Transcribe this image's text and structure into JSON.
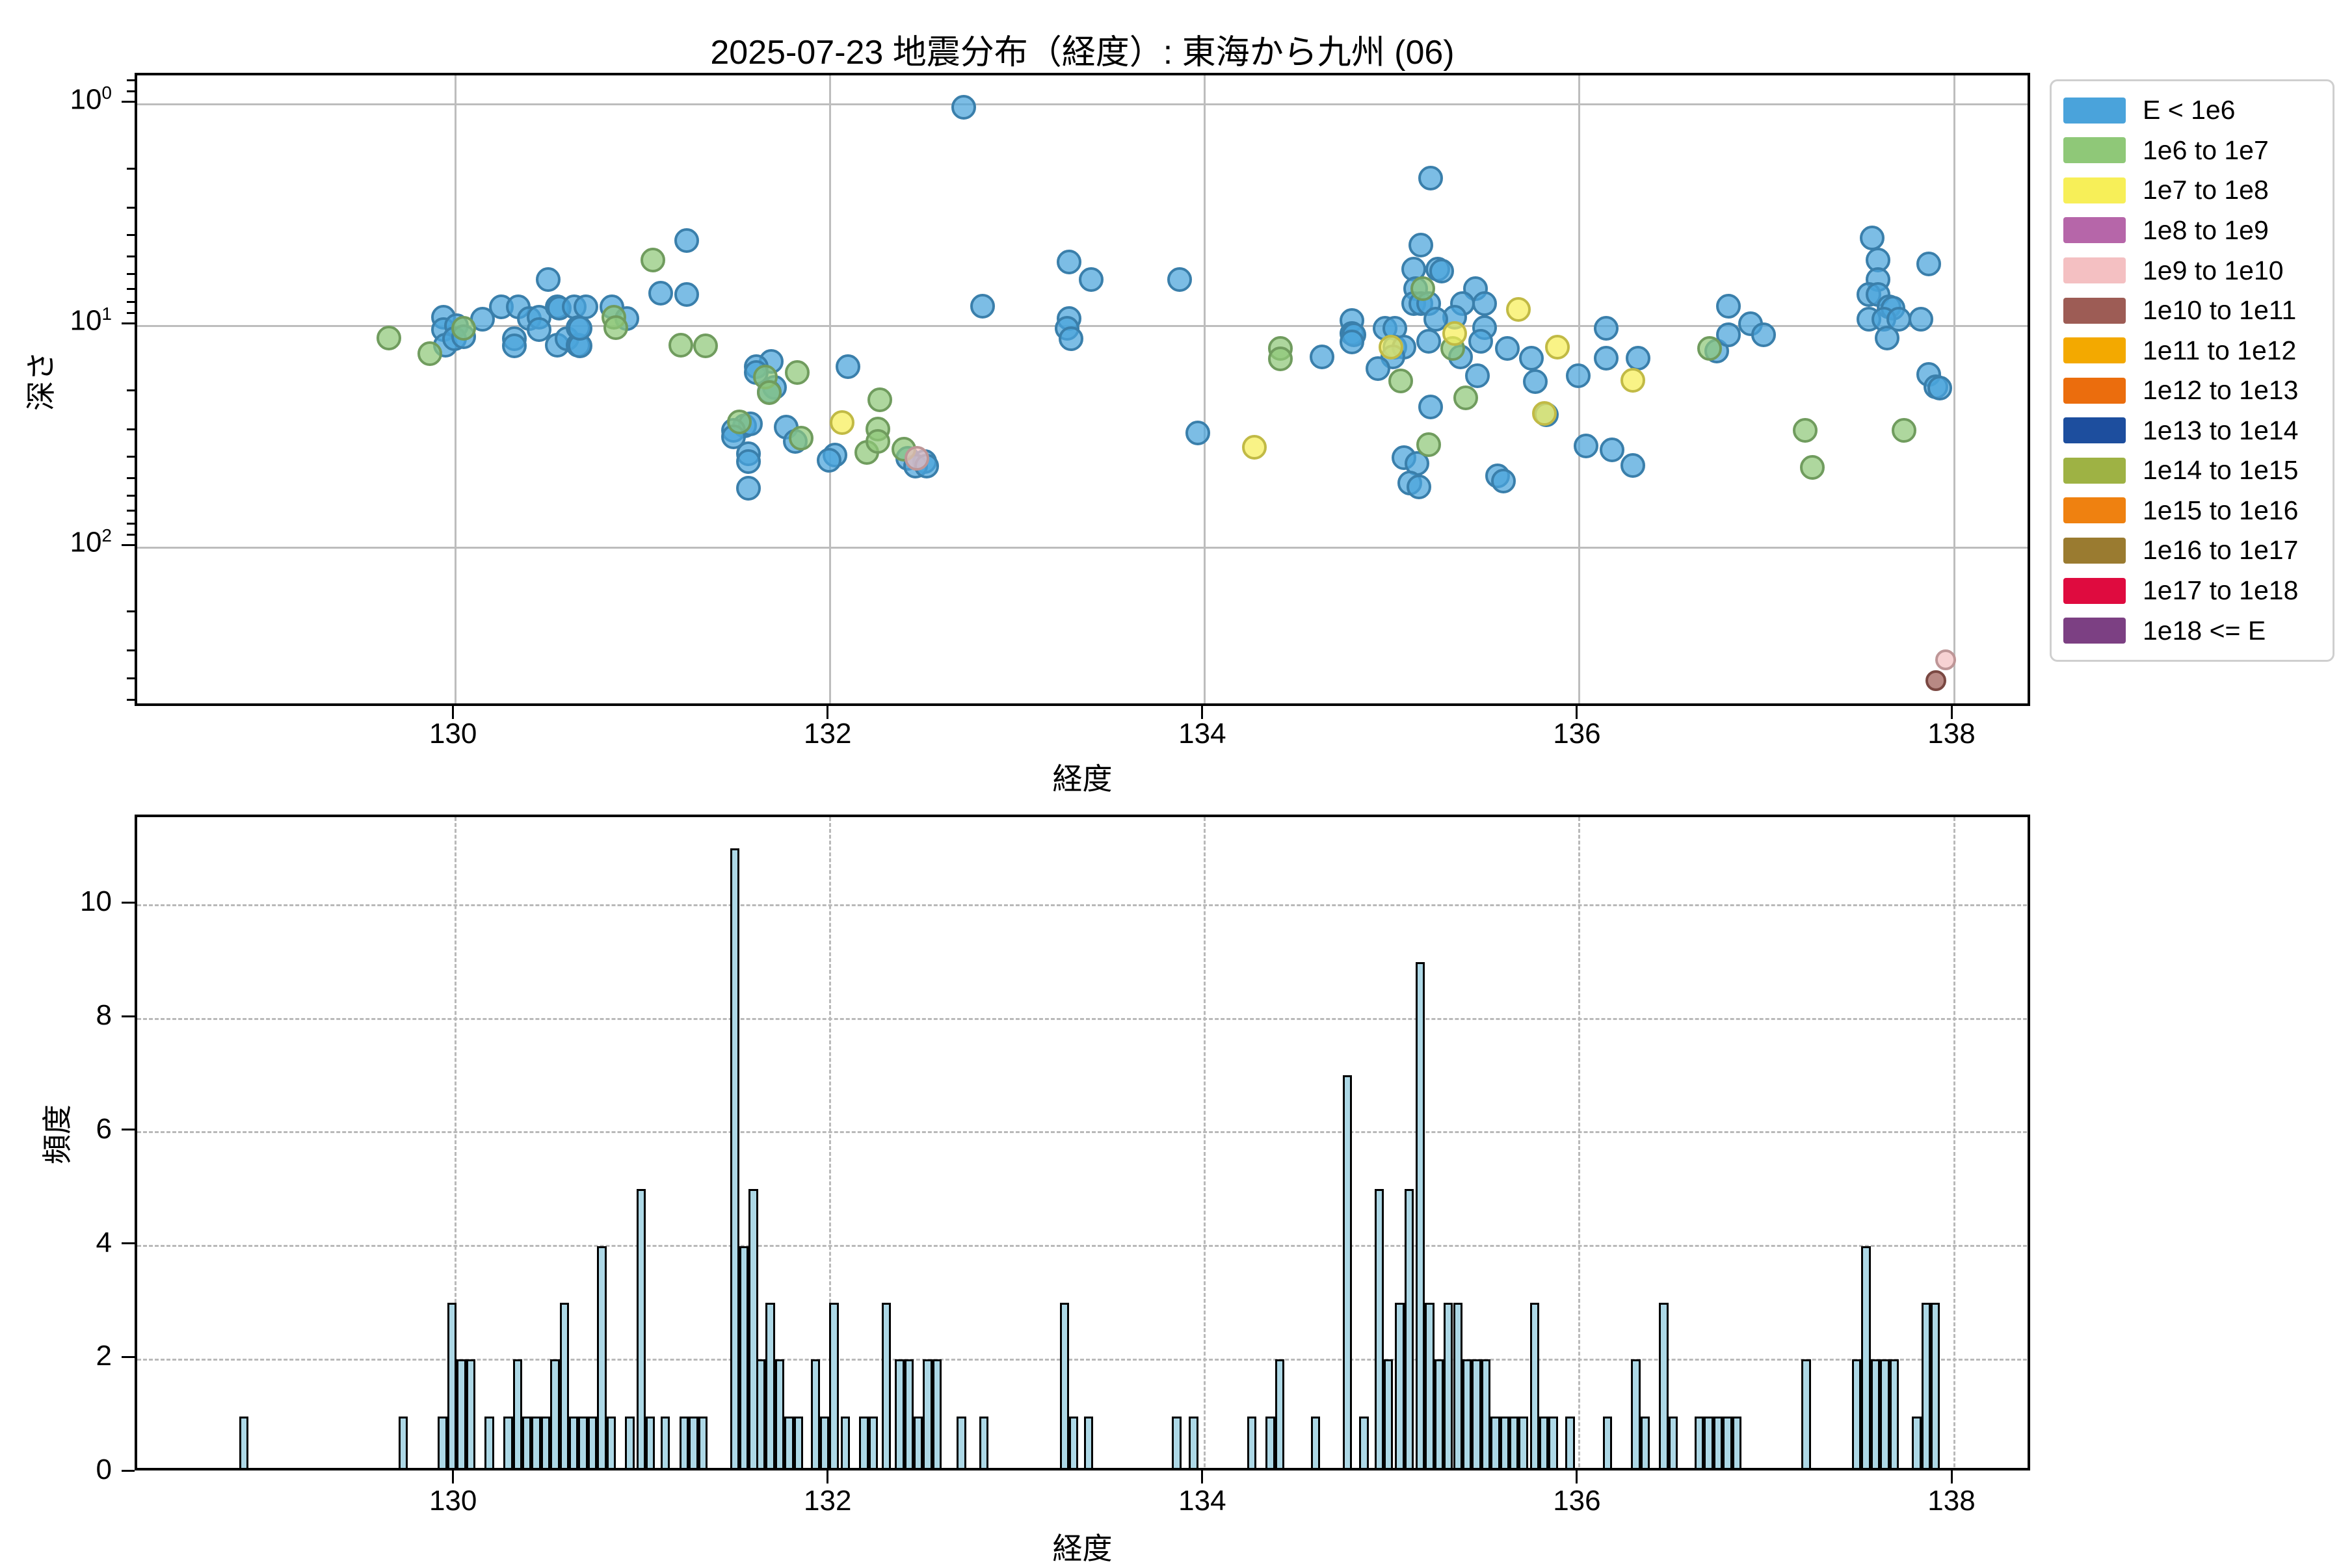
{
  "title": "2025-07-23 地震分布（経度）: 東海から九州 (06)",
  "scatter": {
    "xlabel": "経度",
    "ylabel": "深さ",
    "x_ticks": [
      130,
      132,
      134,
      136,
      138
    ],
    "y_ticks": [
      {
        "value": 1,
        "label": "10⁰"
      },
      {
        "value": 10,
        "label": "10¹"
      },
      {
        "value": 100,
        "label": "10²"
      }
    ]
  },
  "histogram": {
    "xlabel": "経度",
    "ylabel": "頻度",
    "x_ticks": [
      130,
      132,
      134,
      136,
      138
    ],
    "y_ticks": [
      0,
      2,
      4,
      6,
      8,
      10
    ],
    "bar_fill": "#add8e6",
    "bar_edge": "#000000"
  },
  "legend": [
    {
      "label": "E < 1e6",
      "color": "#4aa3db"
    },
    {
      "label": "1e6 to 1e7",
      "color": "#8fc878"
    },
    {
      "label": "1e7 to 1e8",
      "color": "#f7ef58"
    },
    {
      "label": "1e8 to 1e9",
      "color": "#b666a9"
    },
    {
      "label": "1e9 to 1e10",
      "color": "#f4c0c2"
    },
    {
      "label": "1e10 to 1e11",
      "color": "#9d5c55"
    },
    {
      "label": "1e11 to 1e12",
      "color": "#f3a900"
    },
    {
      "label": "1e12 to 1e13",
      "color": "#eb6d0d"
    },
    {
      "label": "1e13 to 1e14",
      "color": "#1d4e9e"
    },
    {
      "label": "1e14 to 1e15",
      "color": "#9eb244"
    },
    {
      "label": "1e15 to 1e16",
      "color": "#ef8110"
    },
    {
      "label": "1e16 to 1e17",
      "color": "#9a7b30"
    },
    {
      "label": "1e17 to 1e18",
      "color": "#df0b3f"
    },
    {
      "label": "1e18 <= E",
      "color": "#7c4083"
    }
  ],
  "chart_data": [
    {
      "type": "scatter",
      "title": "2025-07-23 地震分布（経度）: 東海から九州 (06)",
      "xlabel": "経度",
      "ylabel": "深さ",
      "xlim": [
        128.3,
        138.42
      ],
      "ylim": [
        0.74,
        533
      ],
      "yscale": "log",
      "y_inverted": true,
      "grid": "solid",
      "legend_position": "outside-right",
      "series": [
        {
          "name": "E < 1e6",
          "color": "#4aa3db",
          "points": [
            [
              129.92,
              8.9
            ],
            [
              129.92,
              10.1
            ],
            [
              129.93,
              11.9
            ],
            [
              129.99,
              9.7
            ],
            [
              129.98,
              11.1
            ],
            [
              130.03,
              10.9
            ],
            [
              130.13,
              9.1
            ],
            [
              130.23,
              8.0
            ],
            [
              130.32,
              8.0
            ],
            [
              130.38,
              9.0
            ],
            [
              130.43,
              8.9
            ],
            [
              130.43,
              10.1
            ],
            [
              130.48,
              6.0
            ],
            [
              130.53,
              8.0
            ],
            [
              130.54,
              8.1
            ],
            [
              130.62,
              8.0
            ],
            [
              130.68,
              8.0
            ],
            [
              130.3,
              11.1
            ],
            [
              130.3,
              12.0
            ],
            [
              130.53,
              11.9
            ],
            [
              130.58,
              11.1
            ],
            [
              130.64,
              11.9
            ],
            [
              130.65,
              12.0
            ],
            [
              130.64,
              9.9
            ],
            [
              130.65,
              10.0
            ],
            [
              130.82,
              8.0
            ],
            [
              130.9,
              9.0
            ],
            [
              131.08,
              6.9
            ],
            [
              131.22,
              4.0
            ],
            [
              131.22,
              7.0
            ],
            [
              131.67,
              14.1
            ],
            [
              131.59,
              14.9
            ],
            [
              131.59,
              15.8
            ],
            [
              131.69,
              18.4
            ],
            [
              131.66,
              19.3
            ],
            [
              132.08,
              14.9
            ],
            [
              131.53,
              27.5
            ],
            [
              131.56,
              27.0
            ],
            [
              131.47,
              28.8
            ],
            [
              131.47,
              30.8
            ],
            [
              131.75,
              27.9
            ],
            [
              131.8,
              32.3
            ],
            [
              132.01,
              37.3
            ],
            [
              131.98,
              39.4
            ],
            [
              132.4,
              38.5
            ],
            [
              132.49,
              39.9
            ],
            [
              132.44,
              41.8
            ],
            [
              132.5,
              41.8
            ],
            [
              131.55,
              36.8
            ],
            [
              131.55,
              39.9
            ],
            [
              131.55,
              52.6
            ],
            [
              132.7,
              1.0
            ],
            [
              132.8,
              7.9
            ],
            [
              133.26,
              5.0
            ],
            [
              133.38,
              6.0
            ],
            [
              133.85,
              6.0
            ],
            [
              133.26,
              9.0
            ],
            [
              133.25,
              10.0
            ],
            [
              133.27,
              11.1
            ],
            [
              133.95,
              29.6
            ],
            [
              134.61,
              13.4
            ],
            [
              134.77,
              9.2
            ],
            [
              134.77,
              10.5
            ],
            [
              134.78,
              10.7
            ],
            [
              134.77,
              11.5
            ],
            [
              134.95,
              10.0
            ],
            [
              135.0,
              10.0
            ],
            [
              135.0,
              12.1
            ],
            [
              135.05,
              12.1
            ],
            [
              134.99,
              13.4
            ],
            [
              134.91,
              15.2
            ],
            [
              135.19,
              2.1
            ],
            [
              135.14,
              4.2
            ],
            [
              135.1,
              5.4
            ],
            [
              135.23,
              5.4
            ],
            [
              135.25,
              5.5
            ],
            [
              135.11,
              6.6
            ],
            [
              135.1,
              7.7
            ],
            [
              135.14,
              7.7
            ],
            [
              135.18,
              7.7
            ],
            [
              135.43,
              6.6
            ],
            [
              135.36,
              7.7
            ],
            [
              135.48,
              7.7
            ],
            [
              135.32,
              8.9
            ],
            [
              135.22,
              9.1
            ],
            [
              135.48,
              9.9
            ],
            [
              135.46,
              11.4
            ],
            [
              135.18,
              11.4
            ],
            [
              135.35,
              13.4
            ],
            [
              135.6,
              12.3
            ],
            [
              135.73,
              13.6
            ],
            [
              135.44,
              16.3
            ],
            [
              135.75,
              17.3
            ],
            [
              135.98,
              16.3
            ],
            [
              135.19,
              22.6
            ],
            [
              135.81,
              24.5
            ],
            [
              135.05,
              38.3
            ],
            [
              135.12,
              40.7
            ],
            [
              135.08,
              49.8
            ],
            [
              135.13,
              51.8
            ],
            [
              135.55,
              46.1
            ],
            [
              135.58,
              48.9
            ],
            [
              136.02,
              33.9
            ],
            [
              136.16,
              35.3
            ],
            [
              136.27,
              41.5
            ],
            [
              136.13,
              13.6
            ],
            [
              136.3,
              13.6
            ],
            [
              136.13,
              10.0
            ],
            [
              136.72,
              12.6
            ],
            [
              136.78,
              10.7
            ],
            [
              136.78,
              7.9
            ],
            [
              136.9,
              9.5
            ],
            [
              136.97,
              10.7
            ],
            [
              137.55,
              3.9
            ],
            [
              137.58,
              4.9
            ],
            [
              137.58,
              6.0
            ],
            [
              137.53,
              7.0
            ],
            [
              137.58,
              7.0
            ],
            [
              137.64,
              8.0
            ],
            [
              137.66,
              8.1
            ],
            [
              137.53,
              9.1
            ],
            [
              137.61,
              9.1
            ],
            [
              137.69,
              9.1
            ],
            [
              137.81,
              9.1
            ],
            [
              137.85,
              5.1
            ],
            [
              137.63,
              11.0
            ],
            [
              137.85,
              16.1
            ],
            [
              137.89,
              18.3
            ],
            [
              137.91,
              18.6
            ]
          ]
        },
        {
          "name": "1e6 to 1e7",
          "color": "#8fc878",
          "points": [
            [
              129.63,
              11.0
            ],
            [
              129.85,
              13.0
            ],
            [
              130.03,
              10.0
            ],
            [
              130.83,
              8.9
            ],
            [
              130.84,
              9.9
            ],
            [
              131.04,
              4.9
            ],
            [
              131.19,
              11.9
            ],
            [
              131.32,
              12.0
            ],
            [
              131.64,
              16.6
            ],
            [
              131.81,
              15.8
            ],
            [
              131.66,
              19.5
            ],
            [
              132.25,
              20.9
            ],
            [
              131.5,
              26.3
            ],
            [
              131.83,
              31.3
            ],
            [
              132.18,
              36.3
            ],
            [
              132.24,
              28.4
            ],
            [
              132.24,
              32.3
            ],
            [
              132.38,
              35.1
            ],
            [
              134.39,
              12.3
            ],
            [
              134.39,
              13.7
            ],
            [
              135.03,
              17.2
            ],
            [
              135.15,
              6.6
            ],
            [
              135.31,
              12.3
            ],
            [
              135.38,
              20.5
            ],
            [
              135.18,
              33.3
            ],
            [
              136.68,
              12.3
            ],
            [
              137.19,
              28.8
            ],
            [
              137.72,
              28.8
            ],
            [
              137.23,
              42.4
            ]
          ]
        },
        {
          "name": "1e7 to 1e8",
          "color": "#f7ef58",
          "points": [
            [
              132.05,
              26.6
            ],
            [
              134.25,
              34.4
            ],
            [
              134.98,
              12.1
            ],
            [
              135.66,
              8.2
            ],
            [
              135.32,
              10.5
            ],
            [
              135.87,
              12.1
            ],
            [
              136.27,
              17.1
            ],
            [
              135.8,
              24.2
            ]
          ]
        },
        {
          "name": "1e9 to 1e10",
          "color": "#f4c0c2",
          "points": [
            [
              132.45,
              38.5
            ],
            [
              137.94,
              312
            ]
          ]
        },
        {
          "name": "1e10 to 1e11",
          "color": "#9d5c55",
          "points": [
            [
              137.89,
              389
            ]
          ]
        }
      ]
    },
    {
      "type": "bar",
      "xlabel": "経度",
      "ylabel": "頻度",
      "xlim": [
        128.3,
        138.42
      ],
      "ylim": [
        0,
        11.55
      ],
      "bin_width": 0.05,
      "grid": "dashed",
      "bars": [
        [
          128.87,
          1
        ],
        [
          129.72,
          1
        ],
        [
          129.93,
          1
        ],
        [
          129.98,
          3
        ],
        [
          130.03,
          2
        ],
        [
          130.08,
          2
        ],
        [
          130.18,
          1
        ],
        [
          130.28,
          1
        ],
        [
          130.33,
          2
        ],
        [
          130.38,
          1
        ],
        [
          130.43,
          1
        ],
        [
          130.48,
          1
        ],
        [
          130.53,
          2
        ],
        [
          130.58,
          3
        ],
        [
          130.63,
          1
        ],
        [
          130.68,
          1
        ],
        [
          130.73,
          1
        ],
        [
          130.78,
          4
        ],
        [
          130.83,
          1
        ],
        [
          130.93,
          1
        ],
        [
          130.99,
          5
        ],
        [
          131.04,
          1
        ],
        [
          131.12,
          1
        ],
        [
          131.22,
          1
        ],
        [
          131.27,
          1
        ],
        [
          131.32,
          1
        ],
        [
          131.49,
          11
        ],
        [
          131.54,
          4
        ],
        [
          131.59,
          5
        ],
        [
          131.63,
          2
        ],
        [
          131.68,
          3
        ],
        [
          131.73,
          2
        ],
        [
          131.78,
          1
        ],
        [
          131.83,
          1
        ],
        [
          131.92,
          2
        ],
        [
          131.97,
          1
        ],
        [
          132.02,
          3
        ],
        [
          132.08,
          1
        ],
        [
          132.18,
          1
        ],
        [
          132.23,
          1
        ],
        [
          132.3,
          3
        ],
        [
          132.37,
          2
        ],
        [
          132.42,
          2
        ],
        [
          132.47,
          1
        ],
        [
          132.52,
          2
        ],
        [
          132.57,
          2
        ],
        [
          132.7,
          1
        ],
        [
          132.82,
          1
        ],
        [
          133.25,
          3
        ],
        [
          133.3,
          1
        ],
        [
          133.38,
          1
        ],
        [
          133.85,
          1
        ],
        [
          133.94,
          1
        ],
        [
          134.25,
          1
        ],
        [
          134.35,
          1
        ],
        [
          134.4,
          2
        ],
        [
          134.59,
          1
        ],
        [
          134.76,
          7
        ],
        [
          134.85,
          1
        ],
        [
          134.93,
          5
        ],
        [
          134.98,
          2
        ],
        [
          135.04,
          3
        ],
        [
          135.09,
          5
        ],
        [
          135.15,
          9
        ],
        [
          135.2,
          3
        ],
        [
          135.25,
          2
        ],
        [
          135.3,
          3
        ],
        [
          135.35,
          3
        ],
        [
          135.4,
          2
        ],
        [
          135.45,
          2
        ],
        [
          135.5,
          2
        ],
        [
          135.55,
          1
        ],
        [
          135.6,
          1
        ],
        [
          135.65,
          1
        ],
        [
          135.7,
          1
        ],
        [
          135.76,
          3
        ],
        [
          135.81,
          1
        ],
        [
          135.86,
          1
        ],
        [
          135.95,
          1
        ],
        [
          136.15,
          1
        ],
        [
          136.3,
          2
        ],
        [
          136.35,
          1
        ],
        [
          136.45,
          3
        ],
        [
          136.5,
          1
        ],
        [
          136.64,
          1
        ],
        [
          136.69,
          1
        ],
        [
          136.74,
          1
        ],
        [
          136.79,
          1
        ],
        [
          136.84,
          1
        ],
        [
          137.21,
          2
        ],
        [
          137.48,
          2
        ],
        [
          137.53,
          4
        ],
        [
          137.58,
          2
        ],
        [
          137.63,
          2
        ],
        [
          137.68,
          2
        ],
        [
          137.8,
          1
        ],
        [
          137.85,
          3
        ],
        [
          137.9,
          3
        ]
      ]
    }
  ]
}
